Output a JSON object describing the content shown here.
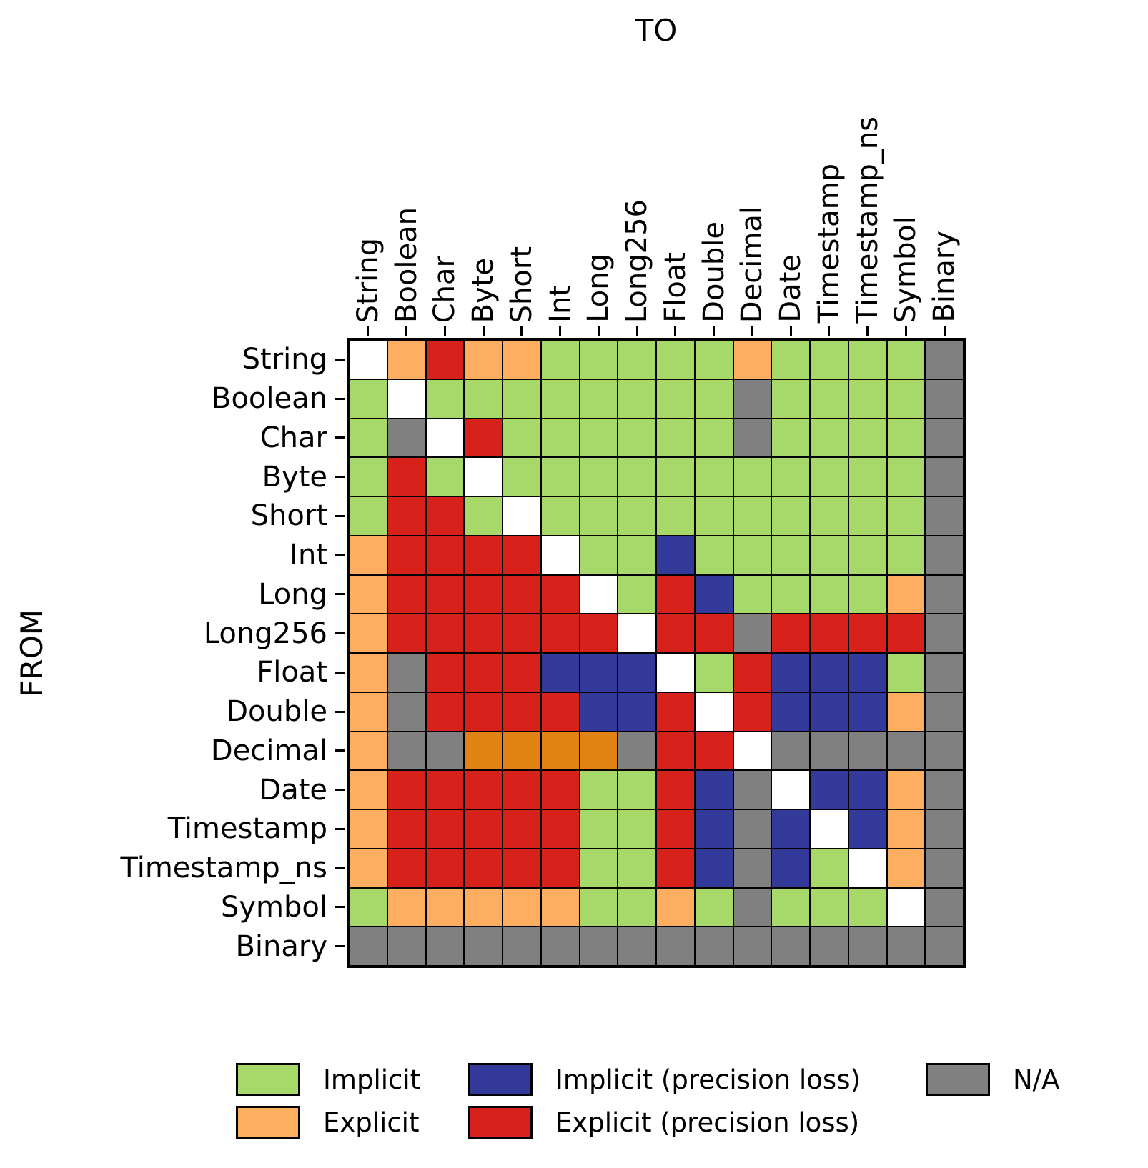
{
  "axes": {
    "x_title": "TO",
    "y_title": "FROM"
  },
  "chart_data": {
    "type": "heatmap",
    "title": "",
    "xlabel": "TO",
    "ylabel": "FROM",
    "columns": [
      "String",
      "Boolean",
      "Char",
      "Byte",
      "Short",
      "Int",
      "Long",
      "Long256",
      "Float",
      "Double",
      "Decimal",
      "Date",
      "Timestamp",
      "Timestamp_ns",
      "Symbol",
      "Binary"
    ],
    "rows": [
      "String",
      "Boolean",
      "Char",
      "Byte",
      "Short",
      "Int",
      "Long",
      "Long256",
      "Float",
      "Double",
      "Decimal",
      "Date",
      "Timestamp",
      "Timestamp_ns",
      "Symbol",
      "Binary"
    ],
    "cell_codes_meaning": {
      "G": "Implicit",
      "O": "Explicit",
      "B": "Implicit (precision loss)",
      "R": "Explicit (precision loss)",
      "N": "N/A",
      "D": "Explicit (dark orange, not in legend)",
      "W": "Same type (blank diagonal)"
    },
    "colors": {
      "G": "#a6d96a",
      "O": "#fdae61",
      "B": "#333a99",
      "R": "#d7221c",
      "N": "#808080",
      "D": "#e08214",
      "W": "#ffffff"
    },
    "matrix": [
      [
        "W",
        "O",
        "R",
        "O",
        "O",
        "G",
        "G",
        "G",
        "G",
        "G",
        "O",
        "G",
        "G",
        "G",
        "G",
        "N"
      ],
      [
        "G",
        "W",
        "G",
        "G",
        "G",
        "G",
        "G",
        "G",
        "G",
        "G",
        "N",
        "G",
        "G",
        "G",
        "G",
        "N"
      ],
      [
        "G",
        "N",
        "W",
        "R",
        "G",
        "G",
        "G",
        "G",
        "G",
        "G",
        "N",
        "G",
        "G",
        "G",
        "G",
        "N"
      ],
      [
        "G",
        "R",
        "G",
        "W",
        "G",
        "G",
        "G",
        "G",
        "G",
        "G",
        "G",
        "G",
        "G",
        "G",
        "G",
        "N"
      ],
      [
        "G",
        "R",
        "R",
        "G",
        "W",
        "G",
        "G",
        "G",
        "G",
        "G",
        "G",
        "G",
        "G",
        "G",
        "G",
        "N"
      ],
      [
        "O",
        "R",
        "R",
        "R",
        "R",
        "W",
        "G",
        "G",
        "B",
        "G",
        "G",
        "G",
        "G",
        "G",
        "G",
        "N"
      ],
      [
        "O",
        "R",
        "R",
        "R",
        "R",
        "R",
        "W",
        "G",
        "R",
        "B",
        "G",
        "G",
        "G",
        "G",
        "O",
        "N"
      ],
      [
        "O",
        "R",
        "R",
        "R",
        "R",
        "R",
        "R",
        "W",
        "R",
        "R",
        "N",
        "R",
        "R",
        "R",
        "R",
        "N"
      ],
      [
        "O",
        "N",
        "R",
        "R",
        "R",
        "B",
        "B",
        "B",
        "W",
        "G",
        "R",
        "B",
        "B",
        "B",
        "G",
        "N"
      ],
      [
        "O",
        "N",
        "R",
        "R",
        "R",
        "R",
        "B",
        "B",
        "R",
        "W",
        "R",
        "B",
        "B",
        "B",
        "O",
        "N"
      ],
      [
        "O",
        "N",
        "N",
        "D",
        "D",
        "D",
        "D",
        "N",
        "R",
        "R",
        "W",
        "N",
        "N",
        "N",
        "N",
        "N"
      ],
      [
        "O",
        "R",
        "R",
        "R",
        "R",
        "R",
        "G",
        "G",
        "R",
        "B",
        "N",
        "W",
        "B",
        "B",
        "O",
        "N"
      ],
      [
        "O",
        "R",
        "R",
        "R",
        "R",
        "R",
        "G",
        "G",
        "R",
        "B",
        "N",
        "B",
        "W",
        "B",
        "O",
        "N"
      ],
      [
        "O",
        "R",
        "R",
        "R",
        "R",
        "R",
        "G",
        "G",
        "R",
        "B",
        "N",
        "B",
        "G",
        "W",
        "O",
        "N"
      ],
      [
        "G",
        "O",
        "O",
        "O",
        "O",
        "O",
        "G",
        "G",
        "O",
        "G",
        "N",
        "G",
        "G",
        "G",
        "W",
        "N"
      ],
      [
        "N",
        "N",
        "N",
        "N",
        "N",
        "N",
        "N",
        "N",
        "N",
        "N",
        "N",
        "N",
        "N",
        "N",
        "N",
        "N"
      ]
    ],
    "legend": [
      {
        "code": "G",
        "label": "Implicit",
        "color": "#a6d96a"
      },
      {
        "code": "O",
        "label": "Explicit",
        "color": "#fdae61"
      },
      {
        "code": "B",
        "label": "Implicit (precision loss)",
        "color": "#333a99"
      },
      {
        "code": "R",
        "label": "Explicit (precision loss)",
        "color": "#d7221c"
      },
      {
        "code": "N",
        "label": "N/A",
        "color": "#808080"
      }
    ],
    "legend_position": "bottom",
    "grid": "black cell borders"
  }
}
